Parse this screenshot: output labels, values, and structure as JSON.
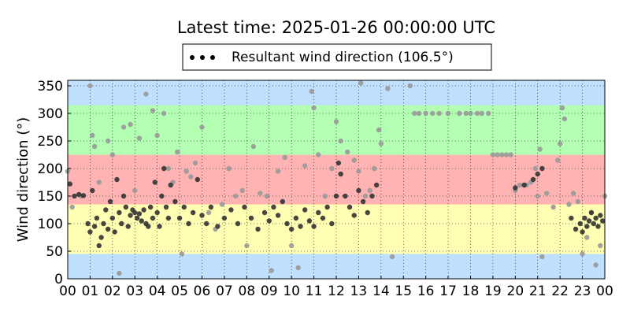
{
  "chart_data": {
    "type": "scatter",
    "title": "Latest time: 2025-01-26 00:00:00 UTC",
    "ylabel": "Wind direction (°)",
    "xlabel": "",
    "x_unit": "hour (UTC)",
    "xlim": [
      0,
      24
    ],
    "ylim": [
      0,
      360
    ],
    "grid": true,
    "legend": {
      "position": "top-center",
      "entries": [
        "Resultant wind direction (106.5°)"
      ]
    },
    "x_ticks": [
      "00",
      "01",
      "02",
      "03",
      "04",
      "05",
      "06",
      "07",
      "08",
      "09",
      "10",
      "11",
      "12",
      "13",
      "14",
      "15",
      "16",
      "17",
      "18",
      "19",
      "20",
      "21",
      "22",
      "23",
      "00"
    ],
    "y_ticks": [
      "0",
      "50",
      "100",
      "150",
      "200",
      "250",
      "300",
      "350"
    ],
    "bands": [
      {
        "from": 0,
        "to": 45,
        "color": "#bfe0ff"
      },
      {
        "from": 45,
        "to": 135,
        "color": "#ffffb3"
      },
      {
        "from": 135,
        "to": 225,
        "color": "#ffb3b3"
      },
      {
        "from": 225,
        "to": 315,
        "color": "#b3ffb3"
      },
      {
        "from": 315,
        "to": 360,
        "color": "#bfe0ff"
      }
    ],
    "colors": {
      "dark_points": "#333333",
      "light_points": "#999999",
      "grid": "#000000"
    },
    "series": [
      {
        "name": "Resultant wind direction (106.5°)",
        "color": "#000000",
        "points": [
          [
            0.1,
            172
          ],
          [
            0.3,
            150
          ],
          [
            0.5,
            153
          ],
          [
            0.7,
            151
          ],
          [
            0.9,
            100
          ],
          [
            1.0,
            85
          ],
          [
            1.1,
            160
          ],
          [
            1.2,
            95
          ],
          [
            1.3,
            110
          ],
          [
            1.4,
            60
          ],
          [
            1.5,
            75
          ],
          [
            1.6,
            100
          ],
          [
            1.7,
            125
          ],
          [
            1.8,
            90
          ],
          [
            1.9,
            140
          ],
          [
            2.0,
            110
          ],
          [
            2.1,
            85
          ],
          [
            2.2,
            180
          ],
          [
            2.3,
            120
          ],
          [
            2.4,
            100
          ],
          [
            2.5,
            150
          ],
          [
            2.6,
            130
          ],
          [
            2.7,
            95
          ],
          [
            2.8,
            115
          ],
          [
            2.9,
            125
          ],
          [
            3.0,
            120
          ],
          [
            3.1,
            110
          ],
          [
            3.2,
            118
          ],
          [
            3.3,
            105
          ],
          [
            3.4,
            125
          ],
          [
            3.5,
            100
          ],
          [
            3.6,
            95
          ],
          [
            3.7,
            130
          ],
          [
            3.8,
            110
          ],
          [
            3.9,
            175
          ],
          [
            4.0,
            120
          ],
          [
            4.1,
            95
          ],
          [
            4.2,
            150
          ],
          [
            4.3,
            200
          ],
          [
            4.4,
            130
          ],
          [
            4.5,
            110
          ],
          [
            4.6,
            170
          ],
          [
            4.8,
            140
          ],
          [
            5.0,
            110
          ],
          [
            5.2,
            130
          ],
          [
            5.4,
            100
          ],
          [
            5.6,
            120
          ],
          [
            5.8,
            180
          ],
          [
            6.0,
            115
          ],
          [
            6.2,
            100
          ],
          [
            6.4,
            130
          ],
          [
            6.7,
            95
          ],
          [
            7.0,
            110
          ],
          [
            7.3,
            125
          ],
          [
            7.6,
            100
          ],
          [
            7.9,
            130
          ],
          [
            8.2,
            110
          ],
          [
            8.5,
            90
          ],
          [
            8.8,
            120
          ],
          [
            9.0,
            105
          ],
          [
            9.2,
            130
          ],
          [
            9.4,
            115
          ],
          [
            9.6,
            140
          ],
          [
            9.8,
            100
          ],
          [
            10.0,
            90
          ],
          [
            10.2,
            110
          ],
          [
            10.4,
            95
          ],
          [
            10.6,
            125
          ],
          [
            10.8,
            105
          ],
          [
            11.0,
            95
          ],
          [
            11.2,
            120
          ],
          [
            11.4,
            110
          ],
          [
            11.6,
            130
          ],
          [
            11.8,
            100
          ],
          [
            12.0,
            150
          ],
          [
            12.1,
            210
          ],
          [
            12.2,
            190
          ],
          [
            12.4,
            150
          ],
          [
            12.6,
            130
          ],
          [
            12.8,
            115
          ],
          [
            13.0,
            160
          ],
          [
            13.2,
            140
          ],
          [
            13.4,
            120
          ],
          [
            13.6,
            150
          ],
          [
            13.8,
            170
          ],
          [
            20.0,
            165
          ],
          [
            20.4,
            170
          ],
          [
            20.8,
            180
          ],
          [
            21.0,
            190
          ],
          [
            21.2,
            200
          ],
          [
            22.5,
            110
          ],
          [
            22.7,
            90
          ],
          [
            22.9,
            100
          ],
          [
            23.0,
            85
          ],
          [
            23.1,
            110
          ],
          [
            23.2,
            95
          ],
          [
            23.3,
            105
          ],
          [
            23.4,
            120
          ],
          [
            23.5,
            100
          ],
          [
            23.6,
            110
          ],
          [
            23.7,
            95
          ],
          [
            23.8,
            115
          ],
          [
            23.9,
            105
          ]
        ]
      },
      {
        "name": "",
        "color": "#999999",
        "points": [
          [
            0.0,
            195
          ],
          [
            0.2,
            130
          ],
          [
            0.6,
            150
          ],
          [
            1.0,
            350
          ],
          [
            1.1,
            260
          ],
          [
            1.2,
            240
          ],
          [
            1.4,
            175
          ],
          [
            1.8,
            250
          ],
          [
            2.0,
            225
          ],
          [
            2.3,
            10
          ],
          [
            2.5,
            275
          ],
          [
            2.8,
            280
          ],
          [
            3.0,
            160
          ],
          [
            3.2,
            255
          ],
          [
            3.5,
            335
          ],
          [
            3.8,
            305
          ],
          [
            4.0,
            260
          ],
          [
            4.3,
            300
          ],
          [
            4.5,
            200
          ],
          [
            4.7,
            175
          ],
          [
            4.9,
            230
          ],
          [
            5.1,
            45
          ],
          [
            5.3,
            195
          ],
          [
            5.5,
            185
          ],
          [
            5.7,
            210
          ],
          [
            6.0,
            275
          ],
          [
            6.3,
            120
          ],
          [
            6.6,
            90
          ],
          [
            6.9,
            135
          ],
          [
            7.2,
            200
          ],
          [
            7.5,
            150
          ],
          [
            7.8,
            160
          ],
          [
            8.0,
            60
          ],
          [
            8.3,
            240
          ],
          [
            8.6,
            155
          ],
          [
            8.9,
            150
          ],
          [
            9.1,
            15
          ],
          [
            9.4,
            195
          ],
          [
            9.7,
            220
          ],
          [
            10.0,
            60
          ],
          [
            10.3,
            20
          ],
          [
            10.6,
            205
          ],
          [
            10.9,
            340
          ],
          [
            11.0,
            310
          ],
          [
            11.2,
            225
          ],
          [
            11.5,
            150
          ],
          [
            11.8,
            200
          ],
          [
            12.0,
            285
          ],
          [
            12.2,
            250
          ],
          [
            12.5,
            230
          ],
          [
            12.8,
            215
          ],
          [
            13.0,
            195
          ],
          [
            13.1,
            355
          ],
          [
            13.3,
            150
          ],
          [
            13.5,
            160
          ],
          [
            13.7,
            200
          ],
          [
            13.9,
            270
          ],
          [
            14.0,
            245
          ],
          [
            14.3,
            345
          ],
          [
            14.5,
            40
          ],
          [
            15.3,
            350
          ],
          [
            15.5,
            300
          ],
          [
            15.7,
            300
          ],
          [
            16.0,
            300
          ],
          [
            16.3,
            300
          ],
          [
            16.6,
            300
          ],
          [
            17.0,
            300
          ],
          [
            17.5,
            300
          ],
          [
            17.8,
            300
          ],
          [
            18.0,
            300
          ],
          [
            18.3,
            300
          ],
          [
            18.5,
            300
          ],
          [
            18.8,
            300
          ],
          [
            19.0,
            225
          ],
          [
            19.2,
            225
          ],
          [
            19.4,
            225
          ],
          [
            19.6,
            225
          ],
          [
            19.8,
            225
          ],
          [
            20.0,
            160
          ],
          [
            20.2,
            170
          ],
          [
            20.5,
            170
          ],
          [
            20.7,
            175
          ],
          [
            20.9,
            200
          ],
          [
            21.0,
            150
          ],
          [
            21.1,
            235
          ],
          [
            21.2,
            40
          ],
          [
            21.4,
            155
          ],
          [
            21.7,
            130
          ],
          [
            21.9,
            215
          ],
          [
            22.0,
            245
          ],
          [
            22.1,
            310
          ],
          [
            22.2,
            290
          ],
          [
            22.4,
            135
          ],
          [
            22.6,
            155
          ],
          [
            22.8,
            140
          ],
          [
            23.0,
            45
          ],
          [
            23.2,
            75
          ],
          [
            23.4,
            120
          ],
          [
            23.6,
            25
          ],
          [
            23.8,
            60
          ],
          [
            24.0,
            150
          ]
        ]
      }
    ]
  }
}
